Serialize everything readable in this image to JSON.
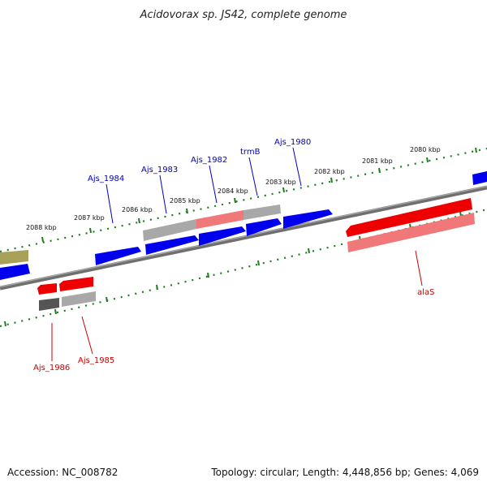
{
  "title": "Acidovorax sp. JS42, complete genome",
  "footer": {
    "accession": "Accession: NC_008782",
    "summary": "Topology: circular; Length: 4,448,856 bp; Genes: 4,069"
  },
  "colors": {
    "forward_gene": "#0000ee",
    "reverse_gene": "#ee0000",
    "pseudo_gene": "#a8a8a8",
    "rna_gene": "#a9a15a",
    "backbone": "#777777",
    "tick": "#1e7d1e",
    "top_label": "#0000c0",
    "bottom_label": "#cc0000"
  },
  "scale_ticks": [
    "2088 kbp",
    "2087 kbp",
    "2086 kbp",
    "2085 kbp",
    "2084 kbp",
    "2083 kbp",
    "2082 kbp",
    "2081 kbp",
    "2080 kbp"
  ],
  "top_genes": [
    "Ajs_1984",
    "Ajs_1983",
    "Ajs_1982",
    "trmB",
    "Ajs_1980"
  ],
  "bottom_genes": [
    "Ajs_1986",
    "Ajs_1985",
    "alaS"
  ]
}
